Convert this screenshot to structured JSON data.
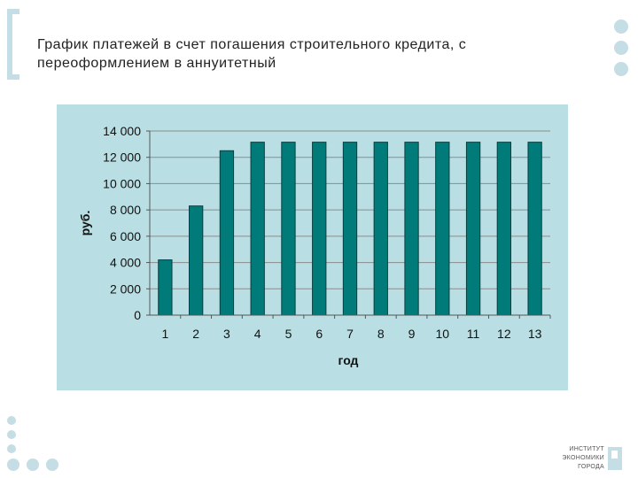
{
  "slide": {
    "title_line1": "График платежей в счет погашения строительного кредита, с",
    "title_line2": "переоформлением в аннуитетный"
  },
  "logo": {
    "line1": "ИНСТИТУТ",
    "line2": "ЭКОНОМИКИ",
    "line3": "ГОРОДА"
  },
  "colors": {
    "bar": "#007b7a",
    "panel": "#b9dfe4",
    "accent_dots": "#c5dde4"
  },
  "chart_data": {
    "type": "bar",
    "title": "",
    "xlabel": "год",
    "ylabel": "руб.",
    "categories": [
      "1",
      "2",
      "3",
      "4",
      "5",
      "6",
      "7",
      "8",
      "9",
      "10",
      "11",
      "12",
      "13"
    ],
    "values": [
      4200,
      8300,
      12500,
      13150,
      13150,
      13150,
      13150,
      13150,
      13150,
      13150,
      13150,
      13150,
      13150
    ],
    "ylim": [
      0,
      14000
    ],
    "yticks": [
      0,
      2000,
      4000,
      6000,
      8000,
      10000,
      12000,
      14000
    ],
    "ytick_labels": [
      "0",
      "2 000",
      "4 000",
      "6 000",
      "8 000",
      "10 000",
      "12 000",
      "14 000"
    ],
    "grid": true,
    "legend": "none"
  }
}
